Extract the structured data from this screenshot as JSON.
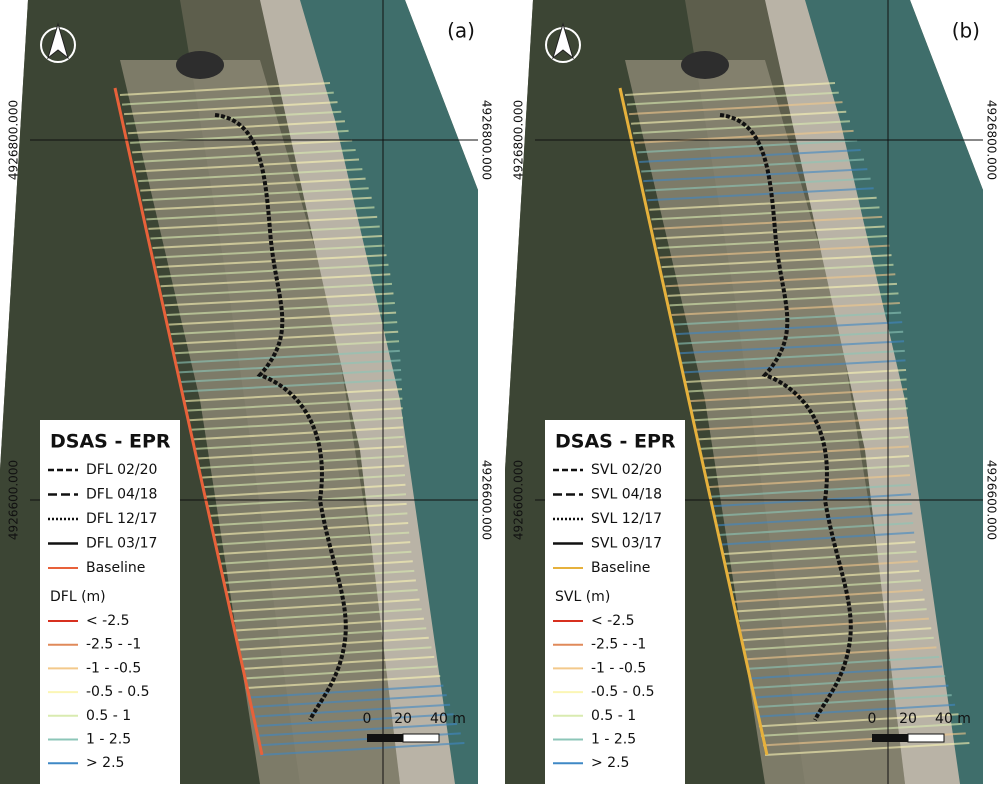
{
  "panels": [
    {
      "label": "(a)",
      "coords": {
        "left_top": "4926800.000",
        "right_top": "4926800.000",
        "left_bottom": "4926600.000",
        "right_bottom": "4926600.000"
      },
      "legend": {
        "title": "DSAS - EPR",
        "lines": [
          "DFL 02/20",
          "DFL 04/18",
          "DFL 12/17",
          "DFL 03/17",
          "Baseline"
        ],
        "class_title": "DFL (m)",
        "classes": [
          "< -2.5",
          "-2.5 - -1",
          "-1 - -0.5",
          "-0.5 - 0.5",
          "0.5 - 1",
          "1 - 2.5",
          "> 2.5"
        ]
      },
      "scale": [
        "0",
        "20",
        "40 m"
      ]
    },
    {
      "label": "(b)",
      "coords": {
        "left_top": "4926800.000",
        "right_top": "4926800.000",
        "left_bottom": "4926600.000",
        "right_bottom": "4926600.000"
      },
      "legend": {
        "title": "DSAS - EPR",
        "lines": [
          "SVL 02/20",
          "SVL 04/18",
          "SVL 12/17",
          "SVL 03/17",
          "Baseline"
        ],
        "class_title": "SVL (m)",
        "classes": [
          "< -2.5",
          "-2.5 - -1",
          "-1 - -0.5",
          "-0.5 - 0.5",
          "0.5 - 1",
          "1 - 2.5",
          "> 2.5"
        ]
      },
      "scale": [
        "0",
        "20",
        "40 m"
      ]
    }
  ]
}
